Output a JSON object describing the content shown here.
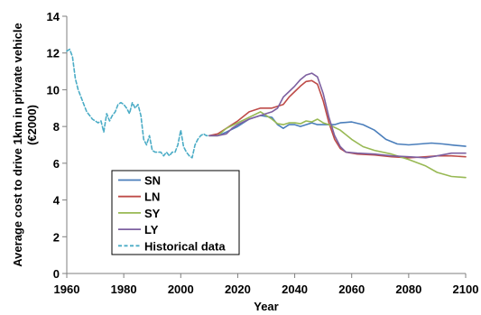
{
  "chart_data": {
    "type": "line",
    "title": "",
    "xlabel": "Year",
    "ylabel_line1": "Average cost to drive 1km in private vehicle",
    "ylabel_line2": "(€2000)",
    "xlim": [
      1960,
      2100
    ],
    "ylim": [
      0,
      14
    ],
    "xticks": [
      "1960",
      "1980",
      "2000",
      "2020",
      "2040",
      "2060",
      "2080",
      "2100"
    ],
    "yticks": [
      "0",
      "2",
      "4",
      "6",
      "8",
      "10",
      "12",
      "14"
    ],
    "grid": false,
    "legend_position": "left-bottom inside plot",
    "series": [
      {
        "name": "SN",
        "color": "#4a7ebb",
        "dash": "solid",
        "x": [
          2010,
          2013,
          2016,
          2020,
          2024,
          2028,
          2032,
          2034,
          2036,
          2038,
          2040,
          2042,
          2044,
          2046,
          2048,
          2050,
          2052,
          2054,
          2056,
          2060,
          2064,
          2068,
          2072,
          2076,
          2080,
          2084,
          2088,
          2092,
          2096,
          2100
        ],
        "y": [
          7.5,
          7.5,
          7.7,
          8.0,
          8.4,
          8.6,
          8.5,
          8.1,
          7.9,
          8.1,
          8.1,
          8.0,
          8.1,
          8.2,
          8.1,
          8.1,
          8.1,
          8.1,
          8.2,
          8.25,
          8.1,
          7.8,
          7.3,
          7.05,
          7.0,
          7.05,
          7.1,
          7.05,
          6.98,
          6.92
        ]
      },
      {
        "name": "LN",
        "color": "#be4b48",
        "dash": "solid",
        "x": [
          2010,
          2013,
          2016,
          2020,
          2024,
          2028,
          2032,
          2036,
          2038,
          2040,
          2042,
          2044,
          2046,
          2048,
          2050,
          2052,
          2054,
          2056,
          2058,
          2062,
          2068,
          2074,
          2080,
          2086,
          2090,
          2095,
          2100
        ],
        "y": [
          7.5,
          7.6,
          7.9,
          8.3,
          8.8,
          9.0,
          9.0,
          9.2,
          9.6,
          9.9,
          10.2,
          10.45,
          10.5,
          10.3,
          9.4,
          8.2,
          7.3,
          6.8,
          6.6,
          6.5,
          6.45,
          6.35,
          6.3,
          6.35,
          6.4,
          6.4,
          6.35
        ]
      },
      {
        "name": "SY",
        "color": "#98b954",
        "dash": "solid",
        "x": [
          2010,
          2013,
          2016,
          2020,
          2024,
          2028,
          2032,
          2034,
          2036,
          2038,
          2040,
          2042,
          2044,
          2046,
          2048,
          2050,
          2052,
          2056,
          2060,
          2064,
          2068,
          2074,
          2080,
          2086,
          2090,
          2095,
          2100
        ],
        "y": [
          7.5,
          7.5,
          7.9,
          8.2,
          8.5,
          8.8,
          8.4,
          8.15,
          8.1,
          8.2,
          8.2,
          8.15,
          8.3,
          8.25,
          8.4,
          8.2,
          8.1,
          7.8,
          7.3,
          6.9,
          6.7,
          6.5,
          6.2,
          5.85,
          5.5,
          5.28,
          5.22
        ]
      },
      {
        "name": "LY",
        "color": "#7d60a0",
        "dash": "solid",
        "x": [
          2010,
          2013,
          2016,
          2018,
          2020,
          2024,
          2028,
          2030,
          2032,
          2034,
          2036,
          2038,
          2040,
          2042,
          2044,
          2046,
          2048,
          2050,
          2052,
          2054,
          2056,
          2058,
          2062,
          2068,
          2074,
          2080,
          2086,
          2090,
          2095,
          2100
        ],
        "y": [
          7.5,
          7.5,
          7.6,
          7.9,
          8.1,
          8.4,
          8.6,
          8.7,
          8.8,
          9.0,
          9.6,
          9.9,
          10.2,
          10.55,
          10.8,
          10.9,
          10.7,
          9.8,
          8.5,
          7.5,
          6.9,
          6.6,
          6.55,
          6.5,
          6.4,
          6.35,
          6.3,
          6.4,
          6.55,
          6.55
        ]
      },
      {
        "name": "Historical data",
        "color": "#4bacc6",
        "dash": "dashed",
        "x": [
          1960,
          1961,
          1962,
          1963,
          1964,
          1965,
          1966,
          1967,
          1968,
          1969,
          1970,
          1971,
          1972,
          1973,
          1974,
          1975,
          1976,
          1977,
          1978,
          1979,
          1980,
          1981,
          1982,
          1983,
          1984,
          1985,
          1986,
          1987,
          1988,
          1989,
          1990,
          1991,
          1992,
          1993,
          1994,
          1995,
          1996,
          1997,
          1998,
          1999,
          2000,
          2001,
          2002,
          2003,
          2004,
          2005,
          2006,
          2007,
          2008,
          2009,
          2010
        ],
        "y": [
          12.1,
          12.2,
          11.8,
          10.6,
          10.0,
          9.6,
          9.2,
          8.8,
          8.6,
          8.4,
          8.3,
          8.2,
          8.3,
          7.7,
          8.7,
          8.3,
          8.6,
          8.8,
          9.2,
          9.3,
          9.2,
          9.0,
          8.7,
          9.3,
          9.0,
          9.2,
          8.6,
          7.3,
          7.0,
          7.5,
          6.7,
          6.6,
          6.6,
          6.6,
          6.4,
          6.6,
          6.4,
          6.6,
          6.6,
          7.0,
          7.8,
          6.9,
          6.6,
          6.4,
          6.3,
          7.0,
          7.3,
          7.5,
          7.6,
          7.5,
          7.5
        ]
      }
    ]
  }
}
